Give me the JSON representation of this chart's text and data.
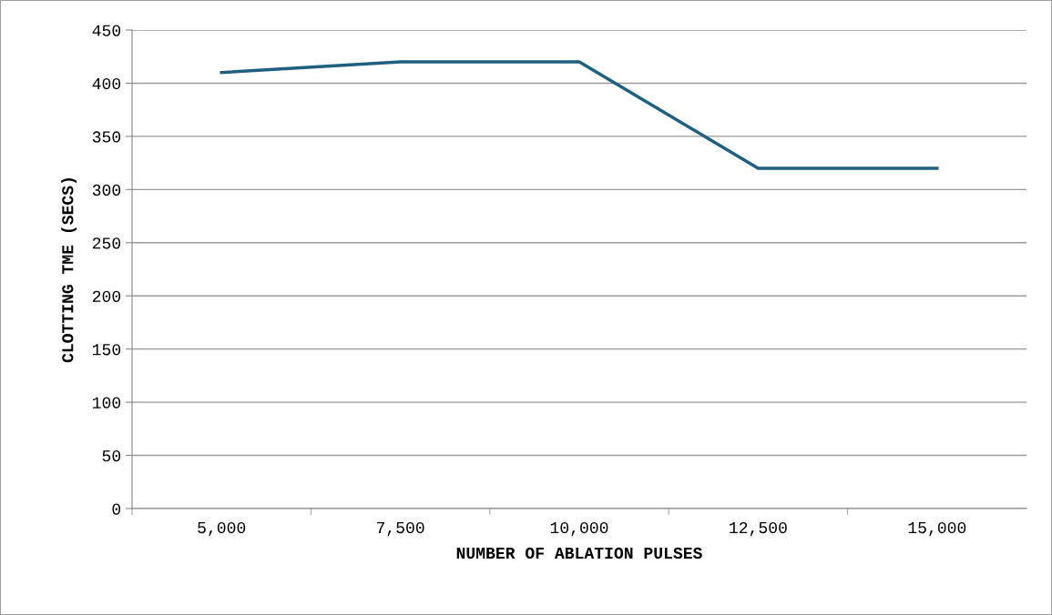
{
  "chart_data": {
    "type": "line",
    "xlabel": "NUMBER OF ABLATION PULSES",
    "ylabel": "CLOTTING TME (SECS)",
    "categories": [
      "5,000",
      "7,500",
      "10,000",
      "12,500",
      "15,000"
    ],
    "series": [
      {
        "color": "#1f5f80",
        "values": [
          410,
          420,
          420,
          320,
          320
        ]
      }
    ],
    "ylim": [
      0,
      450
    ],
    "yticks": [
      0,
      50,
      100,
      150,
      200,
      250,
      300,
      350,
      400,
      450
    ],
    "grid": "y",
    "marker": "none",
    "line_style": "solid",
    "legend": false
  }
}
